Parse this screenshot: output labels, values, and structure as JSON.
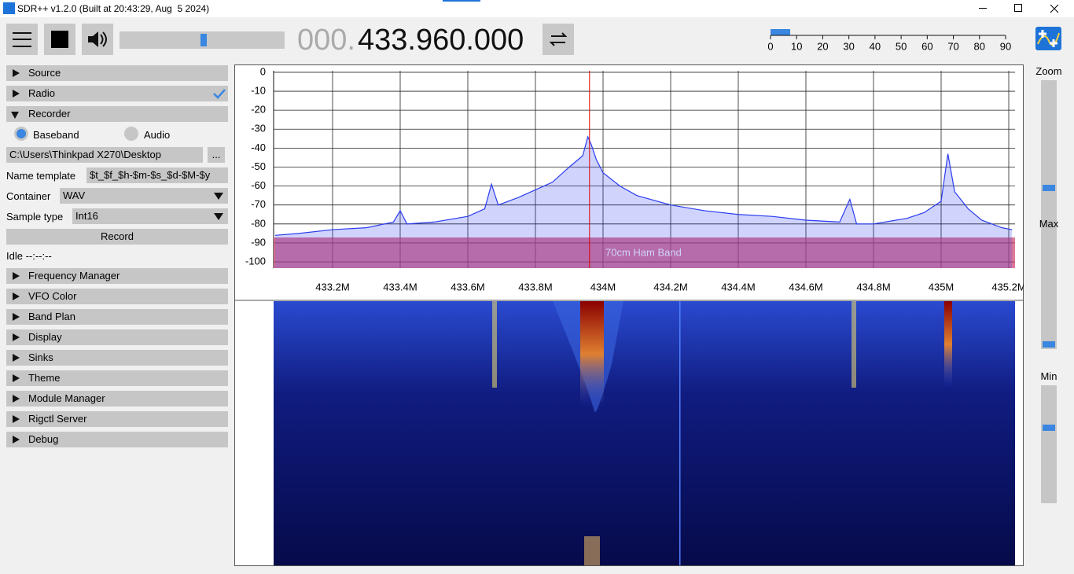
{
  "window": {
    "title": "SDR++ v1.2.0 (Built at 20:43:29, Aug  5 2024)"
  },
  "toolbar": {
    "frequency_prefix": "000.",
    "frequency": "433.960.000",
    "snr_ticks": [
      0,
      10,
      20,
      30,
      40,
      50,
      60,
      70,
      80,
      90
    ],
    "snr_lim": [
      0,
      90
    ]
  },
  "sidebar": {
    "top_menus": [
      "Source",
      "Radio",
      "Recorder"
    ],
    "recorder": {
      "modes": [
        "Baseband",
        "Audio"
      ],
      "path": "C:\\Users\\Thinkpad X270\\Desktop",
      "browse": "...",
      "name_template_label": "Name template",
      "name_template": "$t_$f_$h-$m-$s_$d-$M-$y",
      "container_label": "Container",
      "container": "WAV",
      "sample_type_label": "Sample type",
      "sample_type": "Int16",
      "record": "Record",
      "status": "Idle --:--:--"
    },
    "menus": [
      "Frequency Manager",
      "VFO Color",
      "Band Plan",
      "Display",
      "Sinks",
      "Theme",
      "Module Manager",
      "Rigctl Server",
      "Debug"
    ]
  },
  "chart_data": {
    "type": "line",
    "xlim": [
      433.0256,
      435.2186
    ],
    "ylim": [
      -103.3,
      0.8
    ],
    "yticks": [
      0,
      -10,
      -20,
      -30,
      -40,
      -50,
      -60,
      -70,
      -80,
      -90,
      -100
    ],
    "xticks": [
      {
        "value": 433.2,
        "label": "433.2M"
      },
      {
        "value": 433.4,
        "label": "433.4M"
      },
      {
        "value": 433.6,
        "label": "433.6M"
      },
      {
        "value": 433.8,
        "label": "433.8M"
      },
      {
        "value": 434,
        "label": "434M"
      },
      {
        "value": 434.2,
        "label": "434.2M"
      },
      {
        "value": 434.4,
        "label": "434.4M"
      },
      {
        "value": 434.6,
        "label": "434.6M"
      },
      {
        "value": 434.8,
        "label": "434.8M"
      },
      {
        "value": 435,
        "label": "435M"
      },
      {
        "value": 435.2,
        "label": "435.2M"
      }
    ],
    "band_label": "70cm Ham Band",
    "vfo": 433.96,
    "color": "#2a3cf0",
    "grid": true,
    "x": [
      433.03,
      433.1,
      433.2,
      433.3,
      433.38,
      433.4,
      433.42,
      433.5,
      433.6,
      433.65,
      433.67,
      433.69,
      433.75,
      433.8,
      433.85,
      433.9,
      433.94,
      433.955,
      433.965,
      433.98,
      434.0,
      434.05,
      434.1,
      434.2,
      434.3,
      434.4,
      434.5,
      434.6,
      434.7,
      434.73,
      434.75,
      434.8,
      434.9,
      434.95,
      435.0,
      435.02,
      435.04,
      435.08,
      435.12,
      435.18,
      435.21
    ],
    "values": [
      -86,
      -85,
      -83,
      -82,
      -79,
      -73,
      -80,
      -79,
      -76,
      -72,
      -59,
      -70,
      -66,
      -62,
      -58,
      -50,
      -44,
      -34,
      -38,
      -46,
      -53,
      -60,
      -65,
      -70,
      -73,
      -75,
      -76,
      -78,
      -79,
      -67,
      -80,
      -80,
      -77,
      -74,
      -68,
      -43,
      -63,
      -72,
      -78,
      -82,
      -83
    ]
  },
  "right_panel": {
    "zoom": "Zoom",
    "max": "Max",
    "min": "Min"
  }
}
